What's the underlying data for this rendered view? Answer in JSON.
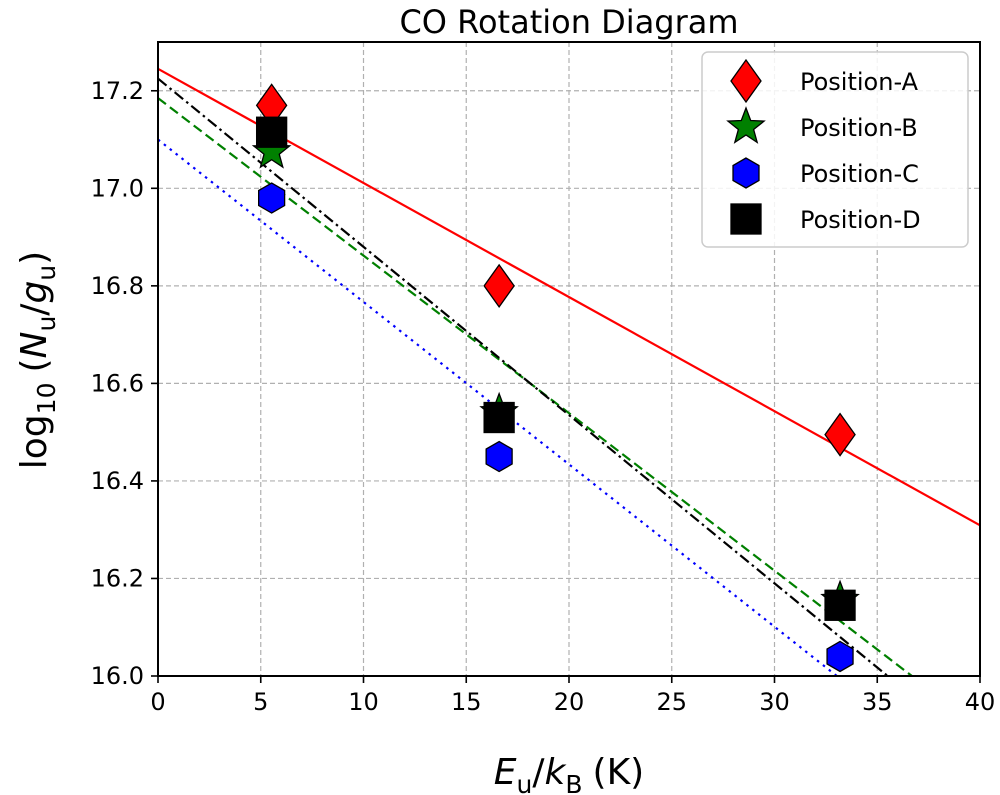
{
  "chart_data": {
    "type": "scatter",
    "title": "CO Rotation Diagram",
    "xlabel": {
      "main": "E",
      "main_sub": "u",
      "sep": "/",
      "den": "k",
      "den_sub": "B",
      "unit": "(K)"
    },
    "ylabel": {
      "prefix": "log",
      "prefix_sub": "10",
      "num": "N",
      "num_sub": "u",
      "sep": "/",
      "den": "g",
      "den_sub": "u"
    },
    "xlim": [
      0,
      40
    ],
    "ylim": [
      16.0,
      17.3
    ],
    "xticks": [
      0,
      5,
      10,
      15,
      20,
      25,
      30,
      35,
      40
    ],
    "yticks": [
      16.0,
      16.2,
      16.4,
      16.6,
      16.8,
      17.0,
      17.2
    ],
    "x_tick_labels": [
      "0",
      "5",
      "10",
      "15",
      "20",
      "25",
      "30",
      "35",
      "40"
    ],
    "y_tick_labels": [
      "16.0",
      "16.2",
      "16.4",
      "16.6",
      "16.8",
      "17.0",
      "17.2"
    ],
    "grid": true,
    "legend_position": "top-right",
    "x": [
      5.53,
      16.6,
      33.19
    ],
    "series": [
      {
        "name": "Position-A",
        "marker": "diamond",
        "color": "#ff0000",
        "values": [
          17.17,
          16.8,
          16.495
        ],
        "fit": {
          "intercept": 17.245,
          "slope": -0.0234,
          "style": "solid"
        }
      },
      {
        "name": "Position-B",
        "marker": "star",
        "color": "#008000",
        "values": [
          17.075,
          16.54,
          16.155
        ],
        "fit": {
          "intercept": 17.185,
          "slope": -0.0323,
          "style": "dashed"
        }
      },
      {
        "name": "Position-C",
        "marker": "hexagon",
        "color": "#0000ff",
        "values": [
          16.98,
          16.45,
          16.04
        ],
        "fit": {
          "intercept": 17.1,
          "slope": -0.0333,
          "style": "dotted"
        }
      },
      {
        "name": "Position-D",
        "marker": "square",
        "color": "#000000",
        "values": [
          17.115,
          16.53,
          16.145
        ],
        "fit": {
          "intercept": 17.225,
          "slope": -0.0345,
          "style": "dashdot"
        }
      }
    ]
  }
}
